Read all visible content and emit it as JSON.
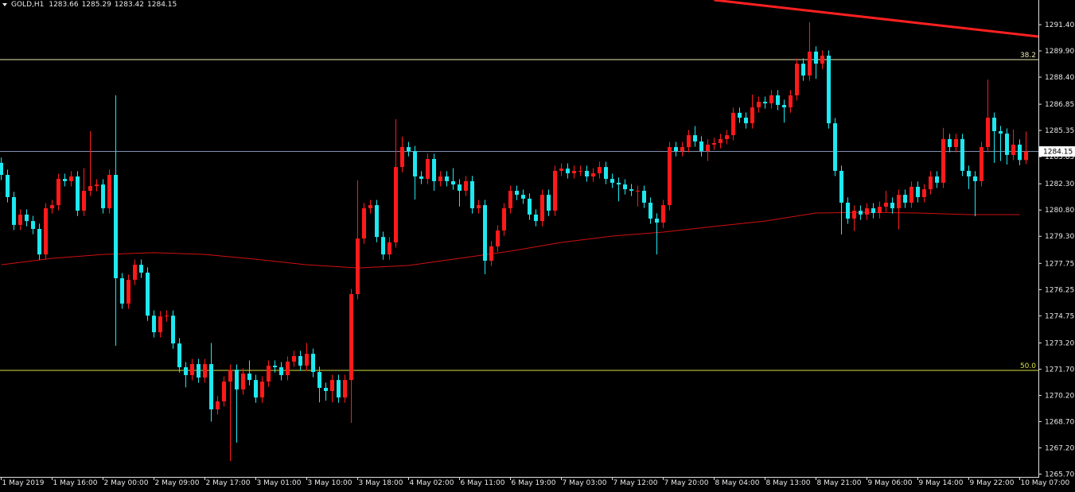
{
  "chart_data": {
    "type": "candlestick",
    "title": "GOLD,H1",
    "categories": [
      "1 May 2019",
      null,
      null,
      null,
      null,
      null,
      null,
      null,
      "1 May 16:00",
      null,
      null,
      null,
      null,
      null,
      null,
      null,
      "2 May 00:00",
      null,
      null,
      null,
      null,
      null,
      null,
      null,
      "2 May 09:00",
      null,
      null,
      null,
      null,
      null,
      null,
      null,
      "2 May 17:00",
      null,
      null,
      null,
      null,
      null,
      null,
      null,
      "3 May 01:00",
      null,
      null,
      null,
      null,
      null,
      null,
      null,
      "3 May 10:00",
      null,
      null,
      null,
      null,
      null,
      null,
      null,
      "3 May 18:00",
      null,
      null,
      null,
      null,
      null,
      null,
      null,
      "4 May 02:00",
      null,
      null,
      null,
      null,
      null,
      null,
      null,
      "6 May 11:00",
      null,
      null,
      null,
      null,
      null,
      null,
      null,
      "6 May 19:00",
      null,
      null,
      null,
      null,
      null,
      null,
      null,
      "7 May 03:00",
      null,
      null,
      null,
      null,
      null,
      null,
      null,
      "7 May 12:00",
      null,
      null,
      null,
      null,
      null,
      null,
      null,
      "7 May 20:00",
      null,
      null,
      null,
      null,
      null,
      null,
      null,
      "8 May 04:00",
      null,
      null,
      null,
      null,
      null,
      null,
      null,
      "8 May 13:00",
      null,
      null,
      null,
      null,
      null,
      null,
      null,
      "8 May 21:00",
      null,
      null,
      null,
      null,
      null,
      null,
      null,
      "9 May 06:00",
      null,
      null,
      null,
      null,
      null,
      null,
      null,
      "9 May 14:00",
      null,
      null,
      null,
      null,
      null,
      null,
      null,
      "9 May 22:00",
      null,
      null,
      null,
      null,
      null,
      null,
      null,
      "10 May 07:00",
      null
    ],
    "open": [
      1283.5,
      1282.81,
      1281.54,
      1279.95,
      1280.54,
      1280.17,
      1279.72,
      1278.26,
      1280.9,
      1281.08,
      1282.58,
      1282.45,
      1282.72,
      1280.76,
      1281.9,
      1282.17,
      1282.26,
      1280.9,
      1282.81,
      1276.9,
      1275.45,
      1276.81,
      1277.67,
      1277.22,
      1274.76,
      1273.81,
      1274.72,
      1274.76,
      1273.17,
      1271.81,
      1271.36,
      1271.99,
      1271.22,
      1271.99,
      1269.4,
      1269.86,
      1270.99,
      1271.67,
      1270.54,
      1271.45,
      1271.08,
      1270.08,
      1270.99,
      1271.9,
      1271.81,
      1271.36,
      1272.13,
      1272.45,
      1271.9,
      1272.58,
      1271.54,
      1270.63,
      1270.45,
      1271.08,
      1270.08,
      1271.08,
      1275.99,
      1279.17,
      1280.9,
      1281.08,
      1279.26,
      1278.26,
      1278.95,
      1283.26,
      1284.4,
      1284.17,
      1282.72,
      1282.58,
      1283.72,
      1282.45,
      1282.72,
      1282.45,
      1282.26,
      1281.9,
      1282.45,
      1280.9,
      1281.08,
      1277.9,
      1278.72,
      1279.63,
      1280.9,
      1281.9,
      1281.67,
      1281.45,
      1280.54,
      1280.17,
      1281.67,
      1280.76,
      1283.04,
      1283.17,
      1282.9,
      1283.04,
      1283.04,
      1282.72,
      1282.9,
      1283.26,
      1282.58,
      1282.36,
      1282.26,
      1281.99,
      1281.9,
      1281.9,
      1281.22,
      1280.31,
      1280.08,
      1281.08,
      1284.4,
      1284.17,
      1284.4,
      1285.08,
      1284.72,
      1284.17,
      1284.54,
      1284.63,
      1284.86,
      1285.08,
      1286.36,
      1286.08,
      1285.76,
      1286.67,
      1286.99,
      1286.9,
      1287.36,
      1286.81,
      1286.67,
      1287.36,
      1289.17,
      1288.49,
      1289.86,
      1289.17,
      1289.63,
      1285.76,
      1283.04,
      1281.22,
      1280.31,
      1280.76,
      1280.54,
      1280.9,
      1280.63,
      1280.99,
      1281.22,
      1280.9,
      1281.67,
      1281.22,
      1282.13,
      1281.54,
      1281.99,
      1282.72,
      1282.36,
      1284.86,
      1284.4,
      1284.86,
      1283.04,
      1282.72,
      1282.45,
      1284.4,
      1286.08,
      1285.31,
      1285.17,
      1283.95,
      1284.54,
      1283.66
    ],
    "high": [
      1283.8,
      1283.11,
      1281.84,
      1280.84,
      1280.84,
      1280.47,
      1280.02,
      1281.2,
      1281.38,
      1282.88,
      1282.88,
      1283.02,
      1283.02,
      1283.2,
      1285.31,
      1282.56,
      1282.56,
      1283.11,
      1287.36,
      1277.2,
      1277.11,
      1277.97,
      1277.97,
      1277.52,
      1275.06,
      1275.02,
      1275.06,
      1275.06,
      1273.47,
      1272.11,
      1272.29,
      1272.29,
      1272.29,
      1273.2,
      1270.16,
      1271.29,
      1271.97,
      1271.97,
      1271.75,
      1272.2,
      1271.38,
      1271.29,
      1272.2,
      1272.2,
      1272.11,
      1272.43,
      1272.75,
      1272.75,
      1273.2,
      1272.88,
      1271.84,
      1270.93,
      1271.38,
      1271.38,
      1271.38,
      1276.29,
      1282.5,
      1281.2,
      1281.38,
      1281.38,
      1279.56,
      1279.25,
      1286.0,
      1285.0,
      1284.7,
      1284.47,
      1283.02,
      1284.02,
      1284.02,
      1283.02,
      1283.02,
      1283.2,
      1282.56,
      1282.75,
      1282.75,
      1281.38,
      1281.38,
      1279.02,
      1279.93,
      1281.2,
      1282.2,
      1282.2,
      1281.97,
      1281.75,
      1280.84,
      1281.97,
      1281.97,
      1283.34,
      1283.47,
      1283.47,
      1283.34,
      1283.34,
      1283.34,
      1283.2,
      1283.56,
      1283.56,
      1282.88,
      1282.66,
      1282.56,
      1282.29,
      1282.2,
      1282.2,
      1281.52,
      1280.61,
      1281.38,
      1284.7,
      1284.7,
      1284.7,
      1285.38,
      1285.6,
      1285.02,
      1284.84,
      1284.93,
      1285.16,
      1285.38,
      1286.66,
      1286.66,
      1286.38,
      1287.4,
      1287.29,
      1287.29,
      1287.66,
      1287.66,
      1287.11,
      1287.66,
      1289.47,
      1289.47,
      1291.54,
      1290.16,
      1289.93,
      1289.93,
      1286.06,
      1283.34,
      1281.52,
      1281.06,
      1281.06,
      1281.2,
      1281.2,
      1281.29,
      1281.9,
      1281.52,
      1281.97,
      1281.97,
      1282.43,
      1282.43,
      1282.29,
      1283.02,
      1283.02,
      1285.5,
      1285.16,
      1285.16,
      1285.16,
      1283.34,
      1283.02,
      1284.7,
      1288.26,
      1286.38,
      1285.61,
      1285.47,
      1285.4,
      1284.84,
      1285.29
    ],
    "low": [
      1282.51,
      1281.24,
      1279.65,
      1279.65,
      1279.87,
      1279.42,
      1277.96,
      1277.96,
      1280.6,
      1280.78,
      1282.15,
      1282.15,
      1280.46,
      1280.46,
      1281.6,
      1281.87,
      1280.6,
      1280.6,
      1273.04,
      1275.15,
      1275.15,
      1276.51,
      1276.92,
      1274.46,
      1273.51,
      1273.51,
      1274.42,
      1272.87,
      1271.51,
      1270.66,
      1271.06,
      1270.92,
      1270.92,
      1268.7,
      1269.1,
      1269.56,
      1266.45,
      1267.5,
      1270.24,
      1270.78,
      1269.78,
      1269.78,
      1270.69,
      1271.51,
      1271.06,
      1271.06,
      1271.83,
      1271.6,
      1271.6,
      1271.24,
      1269.8,
      1269.9,
      1269.8,
      1269.78,
      1269.78,
      1268.63,
      1275.69,
      1278.87,
      1280.6,
      1278.96,
      1277.96,
      1277.96,
      1278.65,
      1282.96,
      1283.87,
      1281.4,
      1282.28,
      1282.28,
      1281.9,
      1282.15,
      1282.15,
      1281.96,
      1281.0,
      1281.6,
      1280.6,
      1280.6,
      1277.13,
      1277.6,
      1278.42,
      1279.33,
      1280.6,
      1281.37,
      1281.15,
      1280.24,
      1279.87,
      1279.87,
      1280.46,
      1280.46,
      1282.74,
      1282.6,
      1282.6,
      1282.74,
      1282.42,
      1282.42,
      1282.6,
      1282.28,
      1282.06,
      1281.3,
      1281.69,
      1281.6,
      1281.0,
      1280.92,
      1280.01,
      1278.26,
      1279.78,
      1280.78,
      1283.87,
      1283.87,
      1284.1,
      1284.42,
      1283.87,
      1283.6,
      1284.24,
      1284.33,
      1284.56,
      1284.78,
      1285.78,
      1285.46,
      1285.46,
      1286.37,
      1286.6,
      1286.6,
      1286.51,
      1285.8,
      1286.37,
      1287.06,
      1288.19,
      1288.19,
      1288.3,
      1288.87,
      1285.46,
      1282.74,
      1279.4,
      1280.01,
      1279.6,
      1280.24,
      1280.24,
      1280.33,
      1280.33,
      1280.69,
      1280.6,
      1279.7,
      1280.92,
      1280.92,
      1281.24,
      1281.24,
      1281.69,
      1282.06,
      1282.06,
      1284.1,
      1284.1,
      1282.74,
      1282.0,
      1280.45,
      1282.15,
      1284.1,
      1283.5,
      1283.6,
      1283.4,
      1283.65,
      1283.36,
      1283.42
    ],
    "close": [
      1282.81,
      1281.54,
      1279.95,
      1280.54,
      1280.17,
      1279.72,
      1278.26,
      1280.9,
      1281.08,
      1282.58,
      1282.45,
      1282.72,
      1280.76,
      1281.9,
      1282.17,
      1282.26,
      1280.9,
      1282.81,
      1276.9,
      1275.45,
      1276.81,
      1277.67,
      1277.22,
      1274.76,
      1273.81,
      1274.72,
      1274.76,
      1273.17,
      1271.81,
      1271.36,
      1271.99,
      1271.22,
      1271.99,
      1269.4,
      1269.86,
      1270.99,
      1271.67,
      1270.54,
      1271.45,
      1271.08,
      1270.08,
      1270.99,
      1271.9,
      1271.81,
      1271.36,
      1272.13,
      1272.45,
      1271.9,
      1272.58,
      1271.54,
      1270.63,
      1270.45,
      1271.08,
      1270.08,
      1271.08,
      1275.99,
      1279.17,
      1280.9,
      1281.08,
      1279.26,
      1278.26,
      1278.95,
      1283.26,
      1284.4,
      1284.17,
      1282.72,
      1282.58,
      1283.72,
      1282.45,
      1282.72,
      1282.45,
      1282.26,
      1281.9,
      1282.45,
      1280.9,
      1281.08,
      1277.9,
      1278.72,
      1279.63,
      1280.9,
      1281.9,
      1281.67,
      1281.45,
      1280.54,
      1280.17,
      1281.67,
      1280.76,
      1283.04,
      1283.17,
      1282.9,
      1283.04,
      1283.04,
      1282.72,
      1282.9,
      1283.26,
      1282.58,
      1282.36,
      1282.26,
      1281.99,
      1281.9,
      1281.9,
      1281.22,
      1280.31,
      1280.08,
      1281.08,
      1284.4,
      1284.17,
      1284.4,
      1285.08,
      1284.72,
      1284.17,
      1284.54,
      1284.63,
      1284.86,
      1285.08,
      1286.36,
      1286.08,
      1285.76,
      1286.67,
      1286.99,
      1286.9,
      1287.36,
      1286.81,
      1286.67,
      1287.36,
      1289.17,
      1288.49,
      1289.86,
      1289.17,
      1289.63,
      1285.76,
      1283.04,
      1281.22,
      1280.31,
      1280.76,
      1280.54,
      1280.9,
      1280.63,
      1280.99,
      1281.22,
      1280.9,
      1281.67,
      1281.22,
      1282.13,
      1281.54,
      1281.99,
      1282.72,
      1282.36,
      1284.86,
      1284.4,
      1284.86,
      1283.04,
      1282.72,
      1282.45,
      1284.4,
      1286.08,
      1285.31,
      1285.17,
      1283.95,
      1284.54,
      1283.66,
      1284.15
    ],
    "up_color": "#ff1a1a",
    "down_color": "#1ee8f0",
    "ma": {
      "index": [
        0,
        8,
        16,
        24,
        32,
        40,
        48,
        56,
        64,
        72,
        80,
        88,
        96,
        104,
        112,
        120,
        128,
        136,
        144,
        152,
        160
      ],
      "values": [
        1277.67,
        1278.04,
        1278.26,
        1278.36,
        1278.26,
        1277.99,
        1277.67,
        1277.49,
        1277.63,
        1278.04,
        1278.45,
        1278.95,
        1279.31,
        1279.54,
        1279.86,
        1280.17,
        1280.63,
        1280.67,
        1280.63,
        1280.54,
        1280.54
      ],
      "color": "#d01010"
    },
    "trendline": {
      "index": [
        112,
        163
      ],
      "values": [
        1292.81,
        1290.72
      ],
      "color": "#ff2020"
    },
    "levels": [
      {
        "label": "38.2",
        "value": 1289.4,
        "color": "#e8e8b0"
      },
      {
        "label": "50.0",
        "value": 1271.63,
        "color": "#d8e040"
      }
    ],
    "ylim": [
      1265.54,
      1292.81
    ],
    "yticks": [
      {
        "value": 1291.4,
        "label": "1291.40"
      },
      {
        "value": 1289.9,
        "label": "1289.90"
      },
      {
        "value": 1288.4,
        "label": "1288.40"
      },
      {
        "value": 1286.85,
        "label": "1286.85"
      },
      {
        "value": 1285.35,
        "label": "1285.35"
      },
      {
        "value": 1283.85,
        "label": "1283.85"
      },
      {
        "value": 1282.3,
        "label": "1282.30"
      },
      {
        "value": 1280.8,
        "label": "1280.80"
      },
      {
        "value": 1279.3,
        "label": "1279.30"
      },
      {
        "value": 1277.75,
        "label": "1277.75"
      },
      {
        "value": 1276.25,
        "label": "1276.25"
      },
      {
        "value": 1274.75,
        "label": "1274.75"
      },
      {
        "value": 1273.2,
        "label": "1273.20"
      },
      {
        "value": 1271.7,
        "label": "1271.70"
      },
      {
        "value": 1270.2,
        "label": "1270.20"
      },
      {
        "value": 1268.7,
        "label": "1268.70"
      },
      {
        "value": 1267.2,
        "label": "1267.20"
      },
      {
        "value": 1265.7,
        "label": "1265.70"
      }
    ],
    "grid": false
  }
}
